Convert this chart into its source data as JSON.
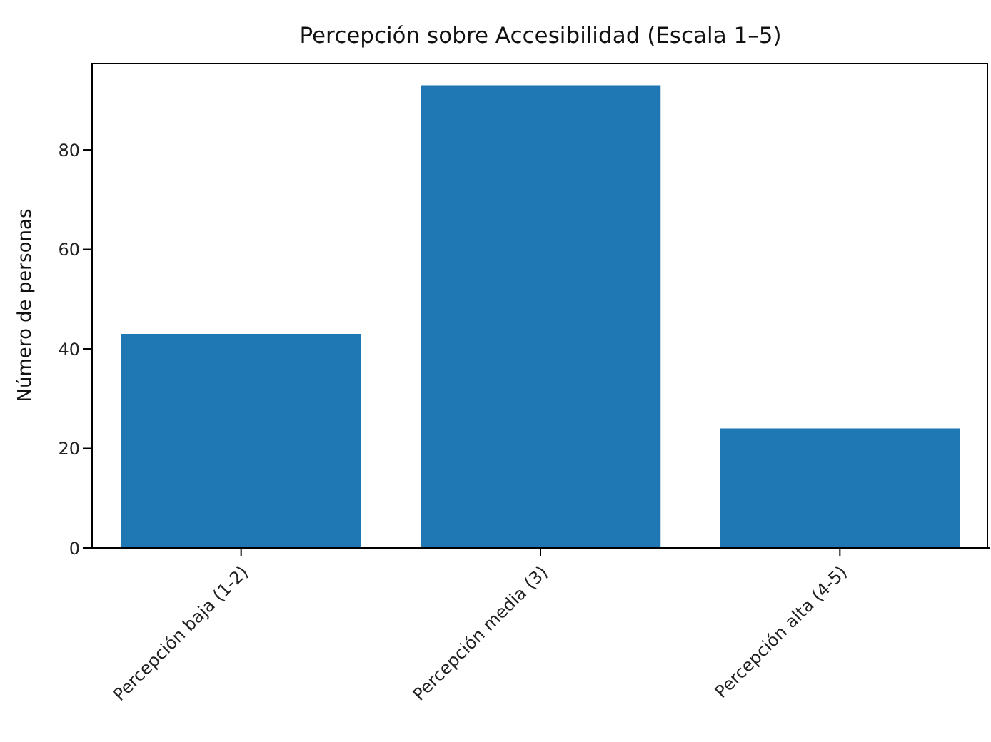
{
  "chart_data": {
    "type": "bar",
    "title": "Percepción sobre Accesibilidad (Escala 1–5)",
    "ylabel": "Número de personas",
    "categories": [
      "Percepción baja (1-2)",
      "Percepción media (3)",
      "Percepción alta (4-5)"
    ],
    "values": [
      43,
      93,
      24
    ],
    "color": "#1f77b4",
    "ylim": [
      0,
      97.5
    ],
    "yticks": [
      0,
      20,
      40,
      60,
      80
    ]
  }
}
